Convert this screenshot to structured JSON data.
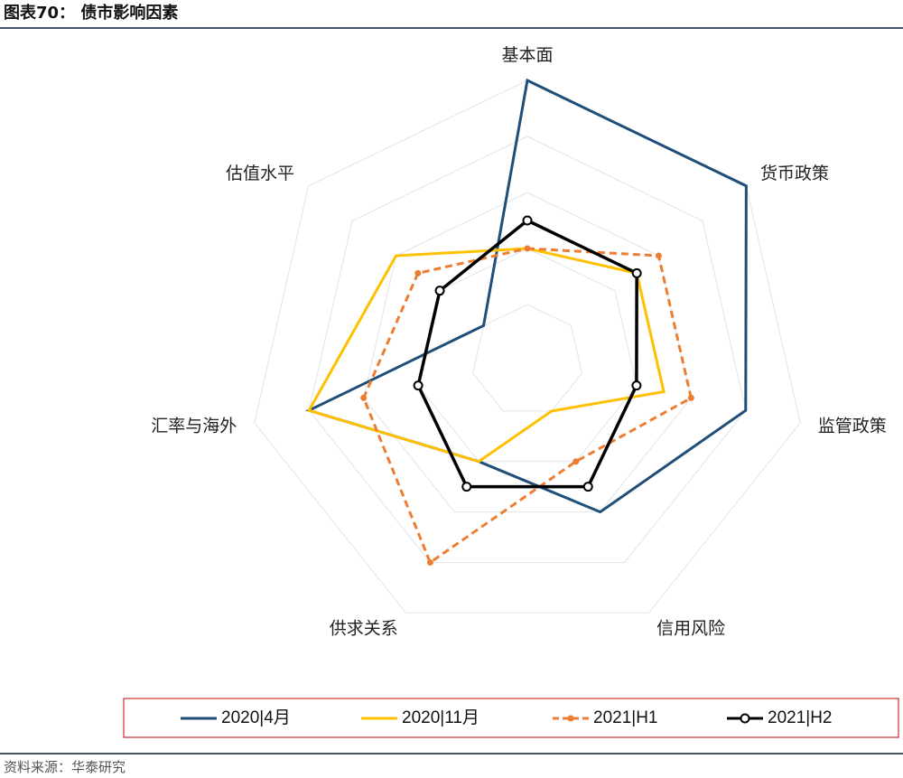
{
  "chart_data": {
    "type": "radar",
    "title": "图表70： 债市影响因素",
    "categories": [
      "基本面",
      "货币政策",
      "监管政策",
      "信用风险",
      "供求关系",
      "汇率与海外",
      "估值水平"
    ],
    "rlim": [
      0,
      5
    ],
    "rticks": [
      1,
      2,
      3,
      4,
      5
    ],
    "grid": true,
    "series": [
      {
        "name": "2020|4月",
        "color": "#1f4e79",
        "dashed": false,
        "marker": false,
        "values": [
          5,
          5,
          4,
          3,
          2,
          4,
          1
        ]
      },
      {
        "name": "2020|11月",
        "color": "#ffc000",
        "dashed": false,
        "marker": false,
        "values": [
          2,
          2.5,
          2.5,
          1,
          2,
          4,
          3
        ]
      },
      {
        "name": "2021|H1",
        "color": "#ed7d31",
        "dashed": true,
        "marker": "dot",
        "values": [
          2,
          3,
          3,
          2,
          4,
          3,
          2.5
        ]
      },
      {
        "name": "2021|H2",
        "color": "#000000",
        "dashed": false,
        "marker": "ring",
        "values": [
          2.5,
          2.5,
          2,
          2.5,
          2.5,
          2,
          2
        ]
      }
    ],
    "source": "资料来源：华泰研究"
  }
}
